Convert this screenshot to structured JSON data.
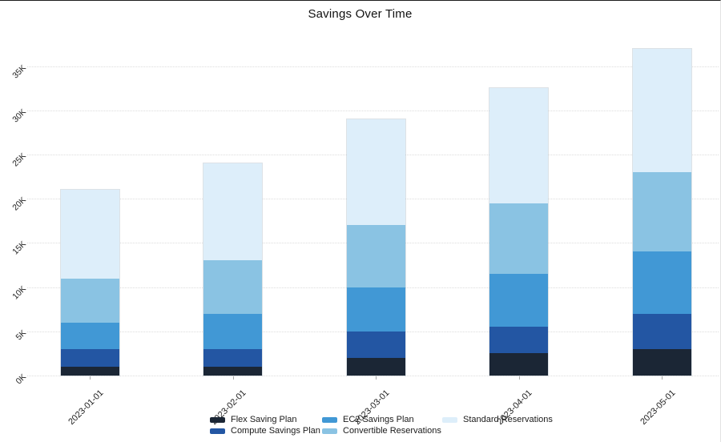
{
  "chart_data": {
    "type": "bar",
    "stacked": true,
    "title": "Savings Over Time",
    "categories": [
      "2023-01-01",
      "2023-02-01",
      "2023-03-01",
      "2023-04-01",
      "2023-05-01"
    ],
    "series": [
      {
        "name": "Flex Saving Plan",
        "color": "#1b2635",
        "values": [
          1000,
          1000,
          2000,
          2500,
          3000
        ]
      },
      {
        "name": "Compute Savings Plan",
        "color": "#2356a3",
        "values": [
          2000,
          2000,
          3000,
          3000,
          4000
        ]
      },
      {
        "name": "EC2 Savings Plan",
        "color": "#4198d5",
        "values": [
          3000,
          4000,
          5000,
          6000,
          7000
        ]
      },
      {
        "name": "Convertible Reservations",
        "color": "#8ac3e3",
        "values": [
          5000,
          6000,
          7000,
          8000,
          9000
        ]
      },
      {
        "name": "Standard Reservations",
        "color": "#ddeefa",
        "values": [
          10000,
          11000,
          12000,
          13000,
          14000
        ]
      }
    ],
    "totals": [
      21000,
      24000,
      29000,
      32500,
      37000
    ],
    "yticks": [
      {
        "label": "0K",
        "value": 0
      },
      {
        "label": "5K",
        "value": 5000
      },
      {
        "label": "10K",
        "value": 10000
      },
      {
        "label": "15K",
        "value": 15000
      },
      {
        "label": "20K",
        "value": 20000
      },
      {
        "label": "25K",
        "value": 25000
      },
      {
        "label": "30K",
        "value": 30000
      },
      {
        "label": "35K",
        "value": 35000
      }
    ],
    "ylim": [
      0,
      38000
    ],
    "xlabel": "",
    "ylabel": "",
    "grid": "horizontal-dotted",
    "legend_position": "bottom-center",
    "legend_columns": [
      [
        "Flex Saving Plan",
        "Compute Savings Plan"
      ],
      [
        "EC2 Savings Plan",
        "Convertible Reservations"
      ],
      [
        "Standard Reservations"
      ]
    ]
  }
}
